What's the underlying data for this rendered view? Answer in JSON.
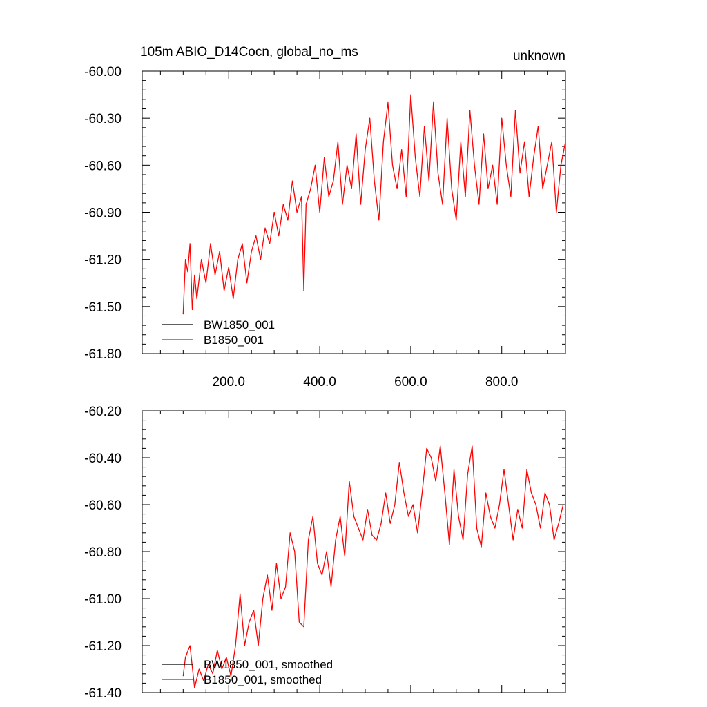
{
  "header": {
    "title_left": "105m ABIO_D14Cocn, global_no_ms",
    "title_right": "unknown"
  },
  "colors": {
    "series_black": "#000000",
    "series_red": "#ff0000"
  },
  "chart_data": [
    {
      "type": "line",
      "title": "105m ABIO_D14Cocn, global_no_ms",
      "title_right": "unknown",
      "xlim": [
        10,
        940
      ],
      "ylim": [
        -61.8,
        -60.0
      ],
      "x_ticks": [
        200,
        400,
        600,
        800
      ],
      "x_tick_labels": [
        "200.0",
        "400.0",
        "600.0",
        "800.0"
      ],
      "y_ticks": [
        -60.0,
        -60.3,
        -60.6,
        -60.9,
        -61.2,
        -61.5,
        -61.8
      ],
      "y_tick_labels": [
        "-60.00",
        "-60.30",
        "-60.60",
        "-60.90",
        "-61.20",
        "-61.50",
        "-61.80"
      ],
      "legend_position": "bottom-left",
      "grid": false,
      "series": [
        {
          "name": "BW1850_001",
          "color": "#000000",
          "x": [],
          "y": []
        },
        {
          "name": "B1850_001",
          "color": "#ff0000",
          "x": [
            100,
            105,
            110,
            115,
            120,
            125,
            130,
            140,
            150,
            160,
            170,
            180,
            190,
            200,
            210,
            220,
            230,
            240,
            250,
            260,
            270,
            280,
            290,
            300,
            310,
            320,
            330,
            340,
            350,
            360,
            365,
            370,
            380,
            390,
            400,
            410,
            420,
            430,
            440,
            450,
            460,
            470,
            480,
            490,
            500,
            510,
            520,
            530,
            540,
            550,
            560,
            570,
            580,
            590,
            600,
            610,
            620,
            630,
            640,
            650,
            660,
            670,
            680,
            690,
            700,
            710,
            720,
            730,
            740,
            750,
            760,
            770,
            780,
            790,
            800,
            810,
            820,
            830,
            840,
            850,
            860,
            870,
            880,
            890,
            900,
            910,
            920,
            930,
            940
          ],
          "y": [
            -61.55,
            -61.2,
            -61.28,
            -61.1,
            -61.52,
            -61.3,
            -61.45,
            -61.2,
            -61.35,
            -61.1,
            -61.3,
            -61.15,
            -61.4,
            -61.25,
            -61.45,
            -61.2,
            -61.1,
            -61.35,
            -61.15,
            -61.05,
            -61.2,
            -61.0,
            -61.1,
            -60.9,
            -61.05,
            -60.85,
            -60.95,
            -60.7,
            -60.9,
            -60.8,
            -61.4,
            -60.85,
            -60.75,
            -60.6,
            -60.9,
            -60.55,
            -60.8,
            -60.7,
            -60.45,
            -60.85,
            -60.6,
            -60.75,
            -60.4,
            -60.85,
            -60.5,
            -60.3,
            -60.7,
            -60.95,
            -60.45,
            -60.2,
            -60.6,
            -60.75,
            -60.5,
            -60.8,
            -60.15,
            -60.55,
            -60.8,
            -60.35,
            -60.7,
            -60.2,
            -60.65,
            -60.85,
            -60.3,
            -60.75,
            -60.95,
            -60.45,
            -60.8,
            -60.25,
            -60.6,
            -60.85,
            -60.4,
            -60.75,
            -60.6,
            -60.85,
            -60.3,
            -60.6,
            -60.8,
            -60.25,
            -60.65,
            -60.45,
            -60.8,
            -60.55,
            -60.35,
            -60.75,
            -60.6,
            -60.45,
            -60.9,
            -60.6,
            -60.45
          ]
        }
      ]
    },
    {
      "type": "line",
      "xlim": [
        10,
        940
      ],
      "ylim": [
        -61.4,
        -60.2
      ],
      "x_ticks": [
        200,
        400,
        600,
        800
      ],
      "x_tick_labels": [],
      "y_ticks": [
        -60.2,
        -60.4,
        -60.6,
        -60.8,
        -61.0,
        -61.2,
        -61.4
      ],
      "y_tick_labels": [
        "-60.20",
        "-60.40",
        "-60.60",
        "-60.80",
        "-61.00",
        "-61.20",
        "-61.40"
      ],
      "legend_position": "bottom-left",
      "grid": false,
      "series": [
        {
          "name": "BW1850_001, smoothed",
          "color": "#000000",
          "x": [],
          "y": []
        },
        {
          "name": "B1850_001, smoothed",
          "color": "#ff0000",
          "x": [
            100,
            105,
            115,
            125,
            135,
            145,
            155,
            165,
            175,
            185,
            195,
            205,
            215,
            225,
            235,
            245,
            255,
            265,
            275,
            285,
            295,
            305,
            315,
            325,
            335,
            345,
            355,
            365,
            375,
            385,
            395,
            405,
            415,
            425,
            435,
            445,
            455,
            465,
            475,
            485,
            495,
            505,
            515,
            525,
            535,
            545,
            555,
            565,
            575,
            585,
            595,
            605,
            615,
            625,
            635,
            645,
            655,
            665,
            675,
            685,
            695,
            705,
            715,
            725,
            735,
            745,
            755,
            765,
            775,
            785,
            795,
            805,
            815,
            825,
            835,
            845,
            855,
            865,
            875,
            885,
            895,
            905,
            915,
            925,
            935
          ],
          "y": [
            -61.33,
            -61.25,
            -61.2,
            -61.38,
            -61.3,
            -61.35,
            -61.28,
            -61.32,
            -61.22,
            -61.3,
            -61.25,
            -61.33,
            -61.2,
            -60.98,
            -61.2,
            -61.1,
            -61.05,
            -61.2,
            -61.0,
            -60.9,
            -61.05,
            -60.85,
            -61.0,
            -60.95,
            -60.72,
            -60.8,
            -61.1,
            -61.12,
            -60.75,
            -60.65,
            -60.85,
            -60.9,
            -60.8,
            -60.95,
            -60.75,
            -60.65,
            -60.82,
            -60.5,
            -60.65,
            -60.7,
            -60.75,
            -60.62,
            -60.73,
            -60.75,
            -60.68,
            -60.55,
            -60.68,
            -60.6,
            -60.42,
            -60.55,
            -60.65,
            -60.6,
            -60.72,
            -60.55,
            -60.36,
            -60.4,
            -60.5,
            -60.35,
            -60.55,
            -60.77,
            -60.45,
            -60.65,
            -60.75,
            -60.47,
            -60.35,
            -60.7,
            -60.78,
            -60.55,
            -60.65,
            -60.7,
            -60.6,
            -60.45,
            -60.6,
            -60.75,
            -60.62,
            -60.7,
            -60.45,
            -60.55,
            -60.6,
            -60.7,
            -60.55,
            -60.6,
            -60.75,
            -60.68,
            -60.6
          ]
        }
      ]
    }
  ]
}
